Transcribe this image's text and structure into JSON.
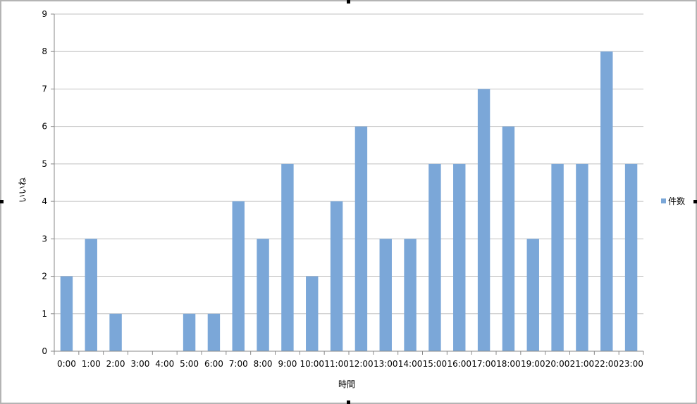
{
  "chart_data": {
    "type": "bar",
    "title": "",
    "xlabel": "時間",
    "ylabel": "いいね",
    "categories": [
      "0:00",
      "1:00",
      "2:00",
      "3:00",
      "4:00",
      "5:00",
      "6:00",
      "7:00",
      "8:00",
      "9:00",
      "10:00",
      "11:00",
      "12:00",
      "13:00",
      "14:00",
      "15:00",
      "16:00",
      "17:00",
      "18:00",
      "19:00",
      "20:00",
      "21:00",
      "22:00",
      "23:00"
    ],
    "series": [
      {
        "name": "件数",
        "color": "#7ba7d8",
        "values": [
          2,
          3,
          1,
          0,
          0,
          1,
          1,
          4,
          3,
          5,
          2,
          4,
          6,
          3,
          3,
          5,
          5,
          7,
          6,
          3,
          5,
          5,
          8,
          5
        ]
      }
    ],
    "ylim": [
      0,
      9
    ],
    "yticks": [
      "0",
      "1",
      "2",
      "3",
      "4",
      "5",
      "6",
      "7",
      "8",
      "9"
    ],
    "grid": true,
    "legend": "right",
    "colors": {
      "bar": "#7ba7d8",
      "grid": "#c0c0c0",
      "axis": "#888888"
    }
  }
}
